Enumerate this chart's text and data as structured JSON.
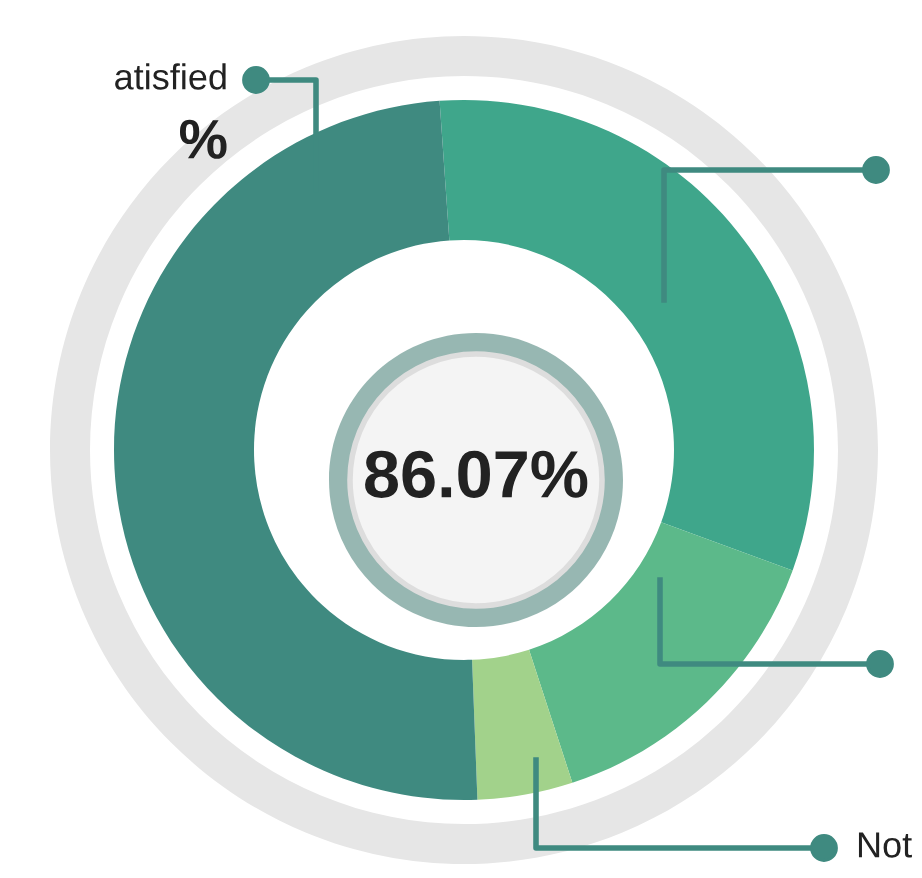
{
  "chart_data": {
    "type": "donut",
    "categories": [
      null,
      null,
      "Not",
      "atisfied"
    ],
    "values": [
      31.7,
      14.4,
      4.4,
      49.5
    ],
    "colors": [
      "#3fa68b",
      "#5cb98a",
      "#a2d28b",
      "#3f8a80"
    ],
    "value_labels": [
      null,
      null,
      null,
      "%"
    ],
    "annotations": [
      "86.07%"
    ],
    "legend": false
  }
}
